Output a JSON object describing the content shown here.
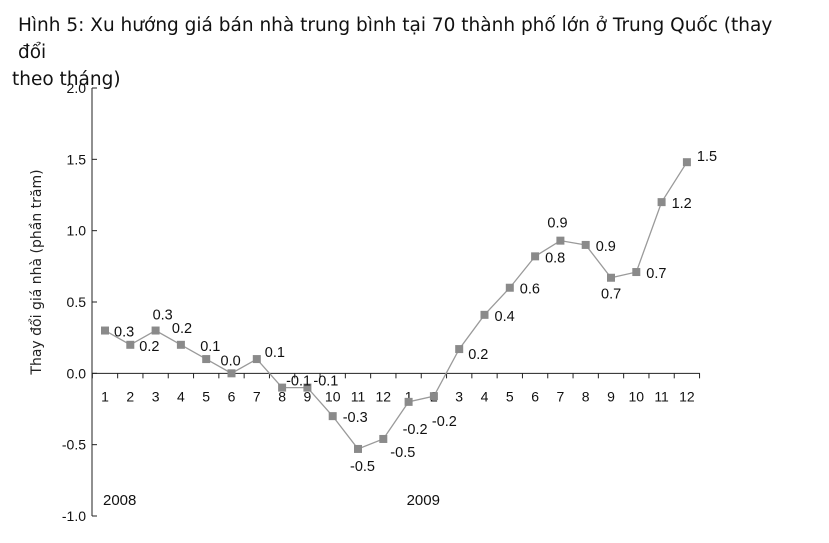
{
  "title": {
    "line1": "Hình 5: Xu hướng giá bán nhà trung bình tại 70 thành phố lớn ở Trung Quốc (thay đổi",
    "line2": "theo tháng)"
  },
  "chart_data": {
    "type": "line",
    "title": "Hình 5: Xu hướng giá bán nhà trung bình tại 70 thành phố lớn ở Trung Quốc (thay đổi theo tháng)",
    "ylabel": "Thay đổi giá nhà (phần trăm)",
    "xlabel": "",
    "ylim": [
      -1.0,
      2.0
    ],
    "yticks": [
      "2.0",
      "1.5",
      "1.0",
      "0.5",
      "0.0",
      "-0.5",
      "-1.0"
    ],
    "year_labels": [
      "2008",
      "2009"
    ],
    "categories": [
      "1",
      "2",
      "3",
      "4",
      "5",
      "6",
      "7",
      "8",
      "9",
      "10",
      "11",
      "12",
      "1",
      "2",
      "3",
      "4",
      "5",
      "6",
      "7",
      "8",
      "9",
      "10",
      "11",
      "12"
    ],
    "values": [
      0.3,
      0.2,
      0.3,
      0.2,
      0.1,
      0.0,
      0.1,
      -0.1,
      -0.1,
      -0.3,
      -0.53,
      -0.46,
      -0.2,
      -0.16,
      0.17,
      0.41,
      0.6,
      0.82,
      0.93,
      0.9,
      0.67,
      0.71,
      1.2,
      1.48
    ],
    "data_labels": [
      "0.3",
      "0.2",
      "0.3",
      "0.2",
      "0.1",
      "0.0",
      "0.1",
      "-0.1",
      "-0.1",
      "-0.3",
      "-0.5",
      "-0.5",
      "-0.2",
      "-0.2",
      "0.2",
      "0.4",
      "0.6",
      "0.8",
      "0.9",
      "0.9",
      "0.7",
      "0.7",
      "1.2",
      "1.5"
    ],
    "colors": {
      "line": "#9a9a9a",
      "marker": "#8a8a8a",
      "axis": "#222222"
    },
    "grid": false,
    "legend": "none"
  }
}
